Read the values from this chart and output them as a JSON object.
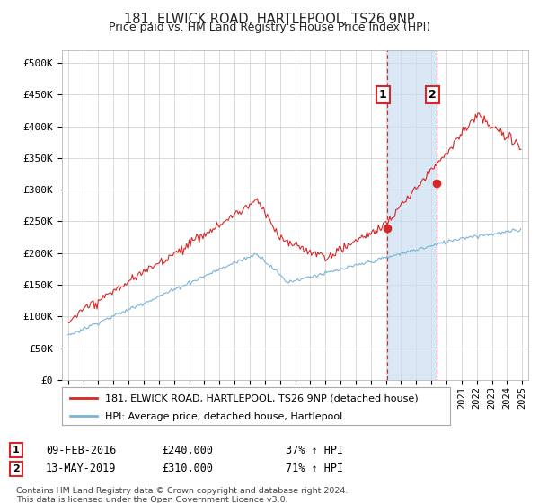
{
  "title": "181, ELWICK ROAD, HARTLEPOOL, TS26 9NP",
  "subtitle": "Price paid vs. HM Land Registry's House Price Index (HPI)",
  "ylabel_ticks": [
    "£0",
    "£50K",
    "£100K",
    "£150K",
    "£200K",
    "£250K",
    "£300K",
    "£350K",
    "£400K",
    "£450K",
    "£500K"
  ],
  "ytick_values": [
    0,
    50000,
    100000,
    150000,
    200000,
    250000,
    300000,
    350000,
    400000,
    450000,
    500000
  ],
  "ylim": [
    0,
    520000
  ],
  "legend_line1": "181, ELWICK ROAD, HARTLEPOOL, TS26 9NP (detached house)",
  "legend_line2": "HPI: Average price, detached house, Hartlepool",
  "annotation1_date": "09-FEB-2016",
  "annotation1_price": "£240,000",
  "annotation1_hpi": "37% ↑ HPI",
  "annotation2_date": "13-MAY-2019",
  "annotation2_price": "£310,000",
  "annotation2_hpi": "71% ↑ HPI",
  "footer": "Contains HM Land Registry data © Crown copyright and database right 2024.\nThis data is licensed under the Open Government Licence v3.0.",
  "hpi_color": "#7ab4d8",
  "price_color": "#d62728",
  "shading_color": "#c9dff0",
  "bg_color": "#ffffff",
  "grid_color": "#cccccc",
  "sale1_x": 2016.1,
  "sale1_y": 240000,
  "sale2_x": 2019.37,
  "sale2_y": 310000,
  "vline1_x": 2016.1,
  "vline2_x": 2019.37,
  "xlim_left": 1994.6,
  "xlim_right": 2025.4
}
